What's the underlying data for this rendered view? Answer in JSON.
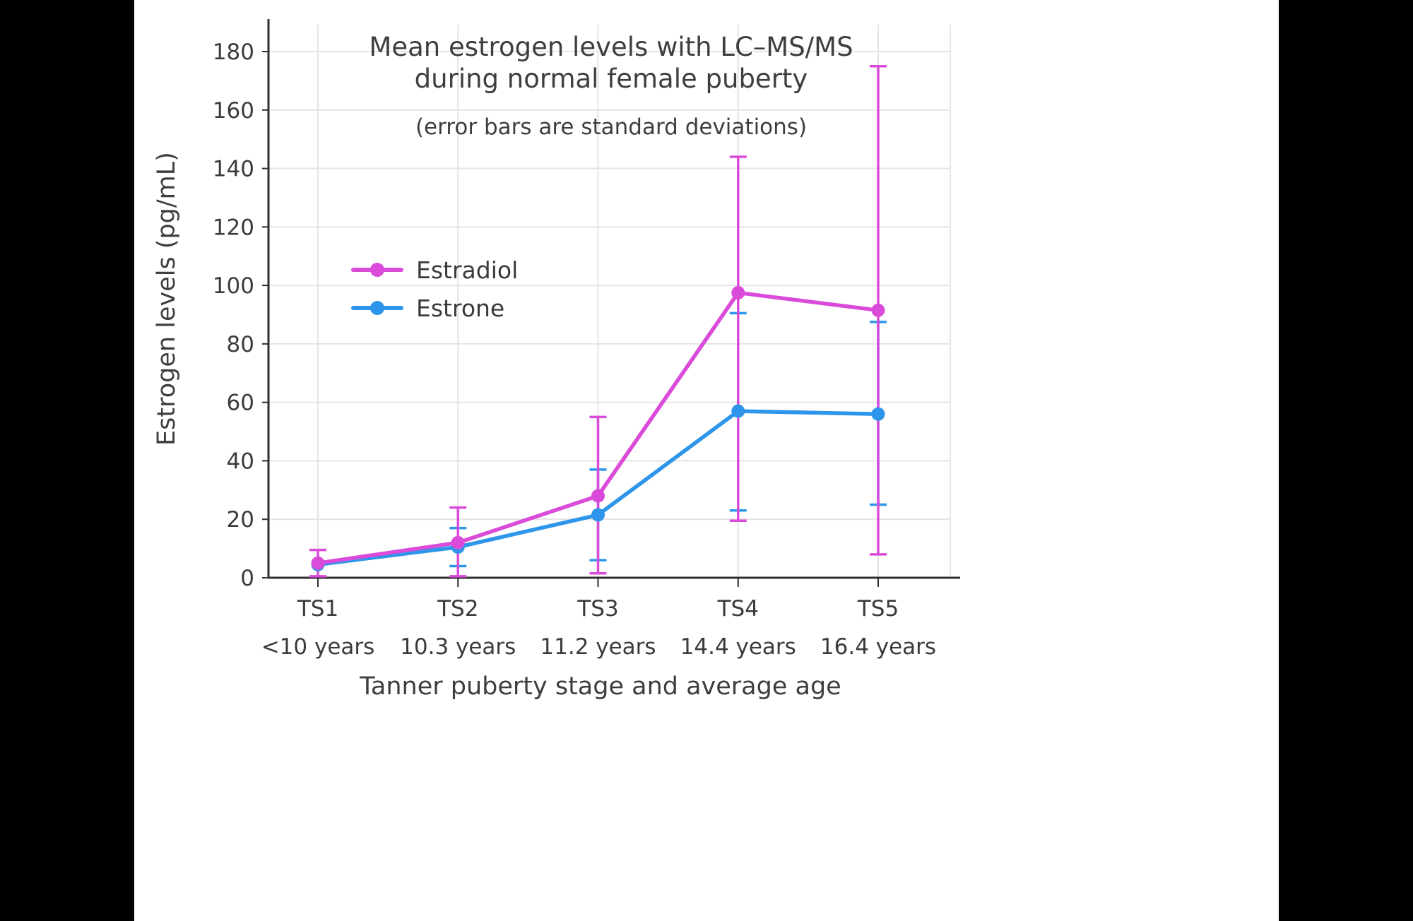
{
  "chart_data": {
    "type": "line",
    "title_lines": [
      "Mean estrogen levels with LC–MS/MS",
      "during normal female puberty"
    ],
    "subtitle": "(error bars are standard deviations)",
    "xlabel": "Tanner puberty stage and average age",
    "ylabel": "Estrogen levels (pg/mL)",
    "ylim": [
      0,
      190
    ],
    "yticks": [
      0,
      20,
      40,
      60,
      80,
      100,
      120,
      140,
      160,
      180
    ],
    "grid": true,
    "legend_position": "inside-upper-left",
    "categories": [
      "TS1",
      "TS2",
      "TS3",
      "TS4",
      "TS5"
    ],
    "category_sublabels": [
      "<10 years",
      "10.3 years",
      "11.2 years",
      "14.4 years",
      "16.4 years"
    ],
    "series": [
      {
        "name": "Estradiol",
        "color": "#da4bda",
        "values": [
          5,
          12,
          28,
          97.5,
          91.5
        ],
        "err_low": [
          0.5,
          0.5,
          1.5,
          19.5,
          8
        ],
        "err_high": [
          9.5,
          24,
          55,
          144,
          175
        ]
      },
      {
        "name": "Estrone",
        "color": "#2e96ea",
        "values": [
          4.5,
          10.5,
          21.5,
          57,
          56
        ],
        "err_low": [
          4.5,
          4,
          6,
          23,
          25
        ],
        "err_high": [
          4.5,
          17,
          37,
          90.5,
          87.5
        ]
      }
    ],
    "axis_color": "#2f2f2f",
    "grid_color": "#e4e4e4"
  }
}
